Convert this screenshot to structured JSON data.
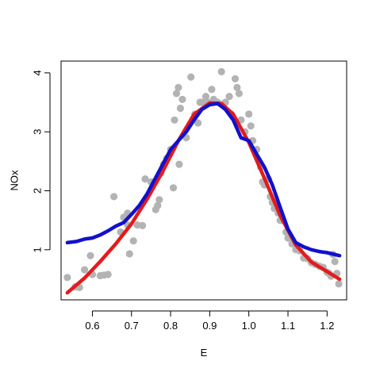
{
  "chart_data": {
    "type": "scatter",
    "title": "",
    "xlabel": "E",
    "ylabel": "NOx",
    "xlim": [
      0.52,
      1.25
    ],
    "ylim": [
      0.15,
      4.2
    ],
    "xticks": [
      "0.6",
      "0.7",
      "0.8",
      "0.9",
      "1.0",
      "1.1",
      "1.2"
    ],
    "yticks": [
      "1",
      "2",
      "3",
      "4"
    ],
    "xtick_values": [
      0.6,
      0.7,
      0.8,
      0.9,
      1.0,
      1.1,
      1.2
    ],
    "ytick_values": [
      1,
      2,
      3,
      4
    ],
    "grid": false,
    "colors": {
      "points": "#b3b3b3",
      "fit_red": "#e41a1c",
      "fit_blue": "#1111cc",
      "axis": "#000000"
    },
    "points": [
      [
        0.536,
        0.53
      ],
      [
        0.556,
        0.37
      ],
      [
        0.567,
        0.36
      ],
      [
        0.58,
        0.66
      ],
      [
        0.595,
        0.9
      ],
      [
        0.6,
        0.58
      ],
      [
        0.62,
        0.56
      ],
      [
        0.63,
        0.57
      ],
      [
        0.64,
        0.58
      ],
      [
        0.655,
        1.9
      ],
      [
        0.672,
        1.3
      ],
      [
        0.68,
        1.55
      ],
      [
        0.69,
        1.62
      ],
      [
        0.69,
        1.42
      ],
      [
        0.695,
        0.93
      ],
      [
        0.705,
        1.15
      ],
      [
        0.715,
        1.42
      ],
      [
        0.728,
        1.41
      ],
      [
        0.735,
        2.2
      ],
      [
        0.75,
        2.15
      ],
      [
        0.762,
        1.68
      ],
      [
        0.767,
        1.75
      ],
      [
        0.771,
        1.85
      ],
      [
        0.775,
        2.3
      ],
      [
        0.782,
        2.45
      ],
      [
        0.79,
        2.55
      ],
      [
        0.8,
        2.7
      ],
      [
        0.807,
        2.05
      ],
      [
        0.81,
        3.2
      ],
      [
        0.815,
        3.65
      ],
      [
        0.82,
        3.75
      ],
      [
        0.822,
        2.45
      ],
      [
        0.825,
        3.4
      ],
      [
        0.83,
        3.55
      ],
      [
        0.84,
        2.9
      ],
      [
        0.852,
        3.93
      ],
      [
        0.862,
        3.3
      ],
      [
        0.87,
        3.15
      ],
      [
        0.875,
        3.5
      ],
      [
        0.88,
        3.5
      ],
      [
        0.89,
        3.6
      ],
      [
        0.895,
        3.5
      ],
      [
        0.905,
        3.72
      ],
      [
        0.91,
        3.55
      ],
      [
        0.92,
        3.5
      ],
      [
        0.93,
        4.02
      ],
      [
        0.94,
        3.5
      ],
      [
        0.95,
        3.6
      ],
      [
        0.955,
        3.3
      ],
      [
        0.965,
        3.9
      ],
      [
        0.97,
        3.75
      ],
      [
        0.975,
        3.65
      ],
      [
        0.98,
        3.2
      ],
      [
        0.99,
        3.0
      ],
      [
        1.0,
        3.3
      ],
      [
        1.005,
        3.1
      ],
      [
        1.01,
        2.85
      ],
      [
        1.02,
        2.7
      ],
      [
        1.03,
        2.4
      ],
      [
        1.035,
        2.15
      ],
      [
        1.04,
        2.1
      ],
      [
        1.05,
        2.2
      ],
      [
        1.055,
        1.9
      ],
      [
        1.06,
        1.8
      ],
      [
        1.065,
        1.7
      ],
      [
        1.075,
        1.62
      ],
      [
        1.08,
        1.5
      ],
      [
        1.085,
        1.5
      ],
      [
        1.095,
        1.3
      ],
      [
        1.1,
        1.2
      ],
      [
        1.11,
        1.1
      ],
      [
        1.12,
        1.0
      ],
      [
        1.13,
        0.98
      ],
      [
        1.14,
        0.86
      ],
      [
        1.15,
        0.85
      ],
      [
        1.16,
        0.78
      ],
      [
        1.17,
        0.75
      ],
      [
        1.18,
        0.72
      ],
      [
        1.19,
        0.7
      ],
      [
        1.2,
        0.62
      ],
      [
        1.205,
        0.6
      ],
      [
        1.21,
        0.55
      ],
      [
        1.215,
        0.92
      ],
      [
        1.22,
        0.8
      ],
      [
        1.225,
        0.6
      ],
      [
        1.23,
        0.42
      ]
    ],
    "series": [
      {
        "style": "red",
        "x": [
          0.536,
          0.58,
          0.62,
          0.66,
          0.7,
          0.74,
          0.78,
          0.82,
          0.86,
          0.9,
          0.93,
          0.96,
          1.0,
          1.04,
          1.08,
          1.12,
          1.16,
          1.2,
          1.232
        ],
        "y": [
          0.27,
          0.52,
          0.8,
          1.1,
          1.44,
          1.86,
          2.33,
          2.85,
          3.3,
          3.49,
          3.48,
          3.3,
          2.82,
          2.21,
          1.58,
          1.08,
          0.79,
          0.63,
          0.5
        ]
      },
      {
        "style": "blue",
        "x": [
          0.536,
          0.56,
          0.58,
          0.6,
          0.62,
          0.64,
          0.66,
          0.68,
          0.7,
          0.72,
          0.74,
          0.76,
          0.78,
          0.8,
          0.82,
          0.84,
          0.86,
          0.88,
          0.9,
          0.92,
          0.94,
          0.96,
          0.98,
          1.0,
          1.02,
          1.04,
          1.06,
          1.08,
          1.1,
          1.12,
          1.14,
          1.16,
          1.18,
          1.2,
          1.232
        ],
        "y": [
          1.12,
          1.14,
          1.18,
          1.2,
          1.25,
          1.32,
          1.4,
          1.46,
          1.6,
          1.75,
          1.95,
          2.2,
          2.45,
          2.7,
          2.85,
          3.0,
          3.2,
          3.38,
          3.46,
          3.48,
          3.38,
          3.2,
          2.9,
          2.85,
          2.62,
          2.4,
          2.1,
          1.72,
          1.35,
          1.12,
          1.05,
          1.0,
          0.97,
          0.95,
          0.9
        ]
      }
    ]
  }
}
